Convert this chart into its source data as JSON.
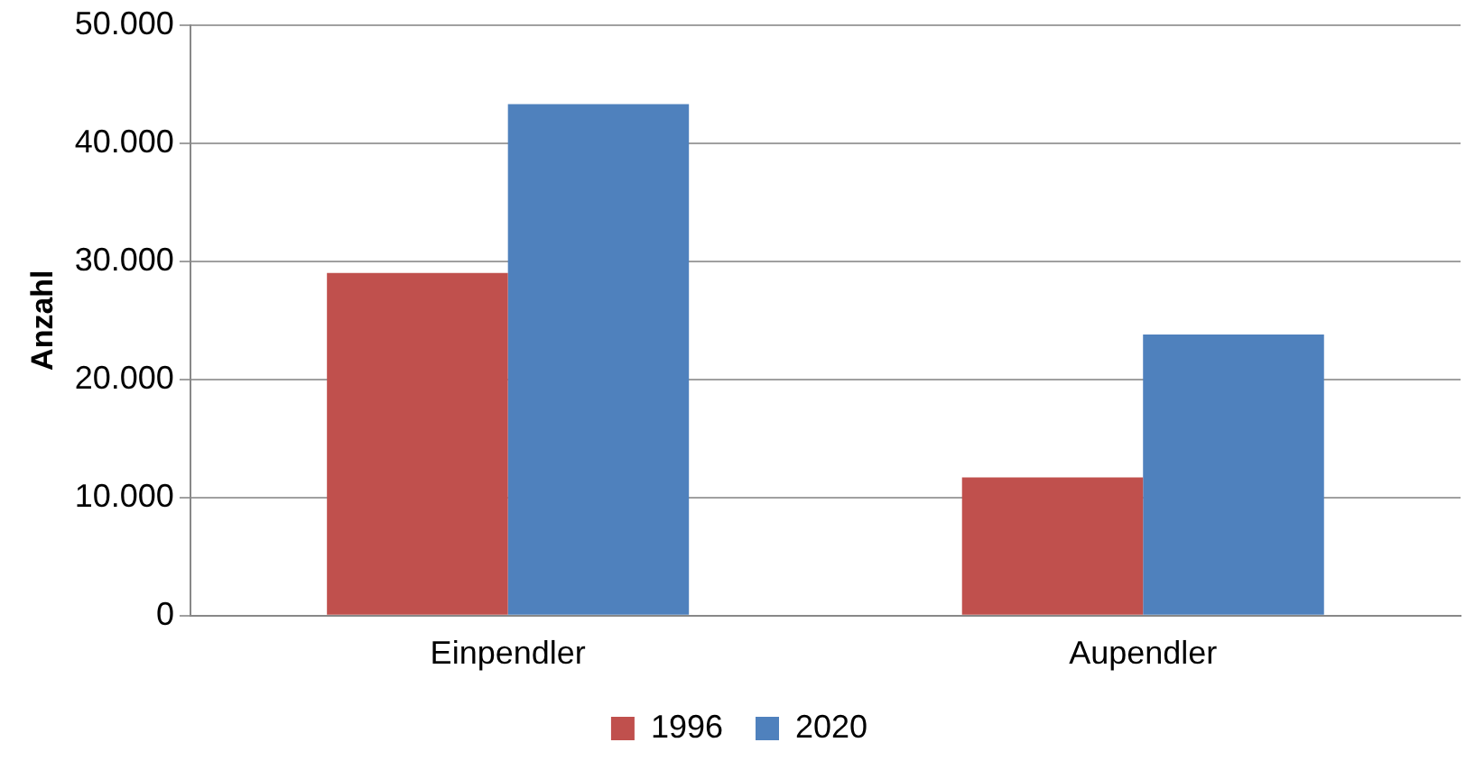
{
  "chart_data": {
    "type": "bar",
    "ylabel": "Anzahl",
    "categories": [
      "Einpendler",
      "Aupendler"
    ],
    "series": [
      {
        "name": "1996",
        "color": "#c0504d",
        "values": [
          29000,
          11700
        ]
      },
      {
        "name": "2020",
        "color": "#4f81bd",
        "values": [
          43300,
          23800
        ]
      }
    ],
    "ylim": [
      0,
      50000
    ],
    "yticks": [
      {
        "value": 0,
        "label": "0"
      },
      {
        "value": 10000,
        "label": "10.000"
      },
      {
        "value": 20000,
        "label": "20.000"
      },
      {
        "value": 30000,
        "label": "30.000"
      },
      {
        "value": 40000,
        "label": "40.000"
      },
      {
        "value": 50000,
        "label": "50.000"
      }
    ],
    "grid": "y",
    "legend": "bottom"
  }
}
